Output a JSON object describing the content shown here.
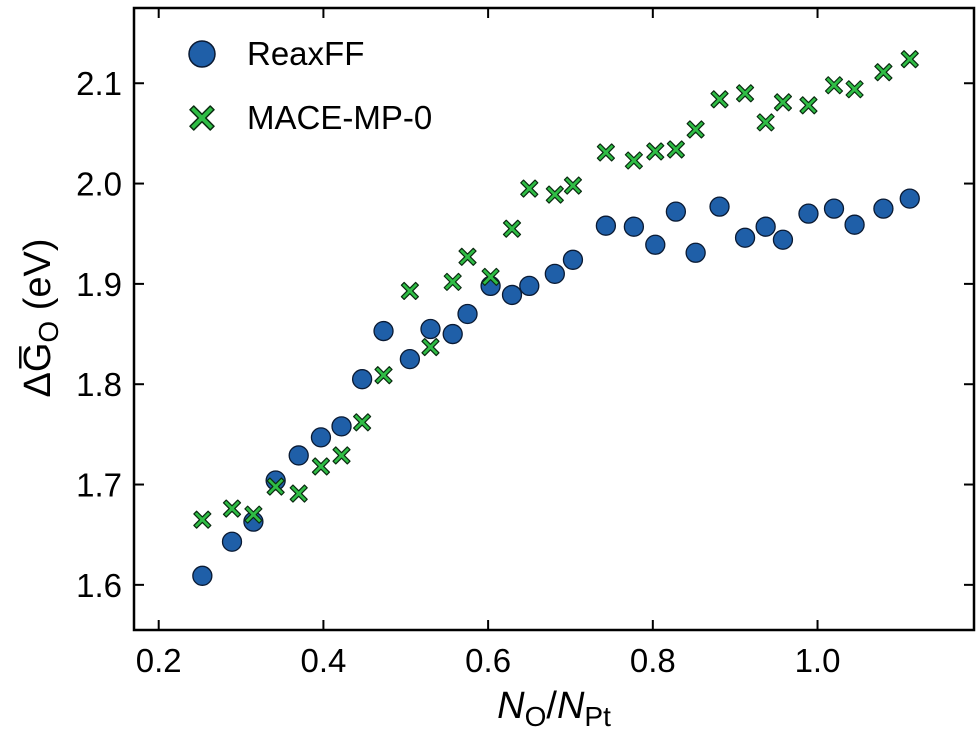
{
  "chart_data": {
    "type": "scatter",
    "title": "",
    "xlabel": {
      "main": "N",
      "sub": "O",
      "slash": "/",
      "main2": "N",
      "sub2": "Pt"
    },
    "ylabel": {
      "prefix": "ΔG̅",
      "sub": "O",
      "suffix": " (eV)"
    },
    "xlim": [
      0.17,
      1.19
    ],
    "ylim": [
      1.555,
      2.175
    ],
    "x_ticks": [
      0.2,
      0.4,
      0.6,
      0.8,
      1.0
    ],
    "x_tick_labels": [
      "0.2",
      "0.4",
      "0.6",
      "0.8",
      "1.0"
    ],
    "y_ticks": [
      1.6,
      1.7,
      1.8,
      1.9,
      2.0,
      2.1
    ],
    "y_tick_labels": [
      "1.6",
      "1.7",
      "1.8",
      "1.9",
      "2.0",
      "2.1"
    ],
    "grid": false,
    "legend_position": "top-left",
    "series": [
      {
        "name": "ReaxFF",
        "marker": "circle",
        "color": "#1f5fa8",
        "edge_color": "#0a1a33",
        "x": [
          0.253,
          0.289,
          0.315,
          0.342,
          0.37,
          0.397,
          0.422,
          0.447,
          0.473,
          0.505,
          0.53,
          0.557,
          0.575,
          0.603,
          0.629,
          0.65,
          0.681,
          0.703,
          0.743,
          0.777,
          0.803,
          0.828,
          0.852,
          0.881,
          0.912,
          0.937,
          0.958,
          0.989,
          1.02,
          1.045,
          1.08,
          1.112
        ],
        "y": [
          1.609,
          1.643,
          1.663,
          1.704,
          1.729,
          1.747,
          1.758,
          1.805,
          1.853,
          1.825,
          1.855,
          1.85,
          1.87,
          1.898,
          1.889,
          1.898,
          1.91,
          1.924,
          1.958,
          1.957,
          1.939,
          1.972,
          1.931,
          1.977,
          1.946,
          1.957,
          1.944,
          1.97,
          1.975,
          1.959,
          1.975,
          1.985
        ]
      },
      {
        "name": "MACE-MP-0",
        "marker": "x",
        "color": "#2fbd45",
        "edge_color": "#0a2a10",
        "x": [
          0.253,
          0.289,
          0.315,
          0.342,
          0.37,
          0.397,
          0.422,
          0.447,
          0.473,
          0.505,
          0.53,
          0.557,
          0.575,
          0.603,
          0.629,
          0.65,
          0.681,
          0.703,
          0.743,
          0.777,
          0.803,
          0.828,
          0.852,
          0.881,
          0.912,
          0.937,
          0.958,
          0.989,
          1.02,
          1.045,
          1.08,
          1.112
        ],
        "y": [
          1.665,
          1.676,
          1.67,
          1.698,
          1.691,
          1.718,
          1.729,
          1.762,
          1.809,
          1.893,
          1.837,
          1.902,
          1.927,
          1.907,
          1.955,
          1.995,
          1.989,
          1.998,
          2.031,
          2.023,
          2.032,
          2.034,
          2.054,
          2.084,
          2.09,
          2.061,
          2.081,
          2.078,
          2.098,
          2.094,
          2.111,
          2.124
        ]
      }
    ]
  }
}
